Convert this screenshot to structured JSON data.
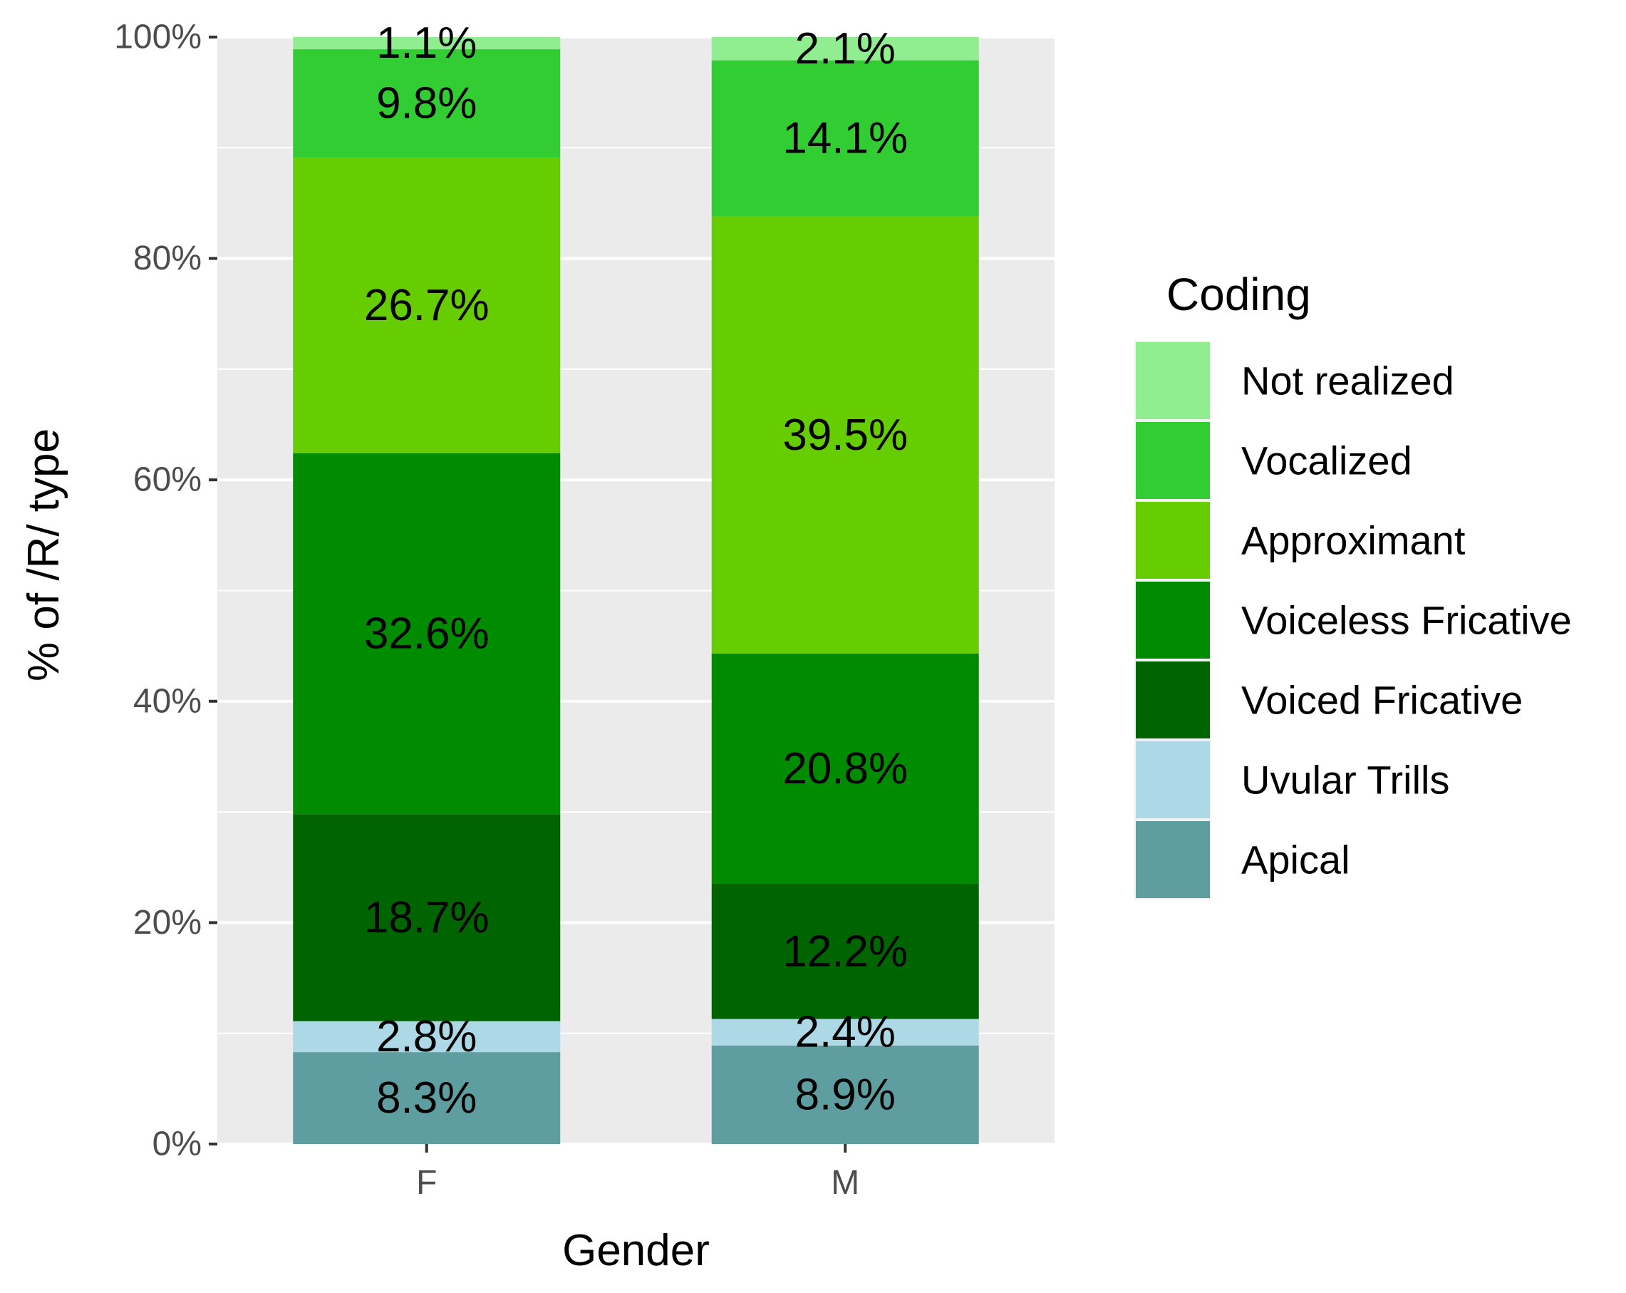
{
  "chart_data": {
    "type": "bar",
    "stacked": true,
    "percent": true,
    "categories": [
      "F",
      "M"
    ],
    "xlabel": "Gender",
    "ylabel": "% of /R/ type",
    "ylim": [
      0,
      100
    ],
    "y_ticks": [
      "0%",
      "20%",
      "40%",
      "60%",
      "80%",
      "100%"
    ],
    "legend_title": "Coding",
    "legend_position": "right",
    "grid": true,
    "series": [
      {
        "name": "Apical",
        "color": "#5f9ea0",
        "values": [
          8.3,
          8.9
        ],
        "labels": [
          "8.3%",
          "8.9%"
        ]
      },
      {
        "name": "Uvular Trills",
        "color": "#add8e6",
        "values": [
          2.8,
          2.4
        ],
        "labels": [
          "2.8%",
          "2.4%"
        ]
      },
      {
        "name": "Voiced Fricative",
        "color": "#006400",
        "values": [
          18.7,
          12.2
        ],
        "labels": [
          "18.7%",
          "12.2%"
        ]
      },
      {
        "name": "Voiceless Fricative",
        "color": "#008b00",
        "values": [
          32.6,
          20.8
        ],
        "labels": [
          "32.6%",
          "20.8%"
        ]
      },
      {
        "name": "Approximant",
        "color": "#66cd00",
        "values": [
          26.7,
          39.5
        ],
        "labels": [
          "26.7%",
          "39.5%"
        ]
      },
      {
        "name": "Vocalized",
        "color": "#32cd32",
        "values": [
          9.8,
          14.1
        ],
        "labels": [
          "9.8%",
          "14.1%"
        ]
      },
      {
        "name": "Not realized",
        "color": "#90ee90",
        "values": [
          1.1,
          2.1
        ],
        "labels": [
          "1.1%",
          "2.1%"
        ]
      }
    ],
    "legend_order": [
      "Not realized",
      "Vocalized",
      "Approximant",
      "Voiceless Fricative",
      "Voiced Fricative",
      "Uvular Trills",
      "Apical"
    ]
  }
}
